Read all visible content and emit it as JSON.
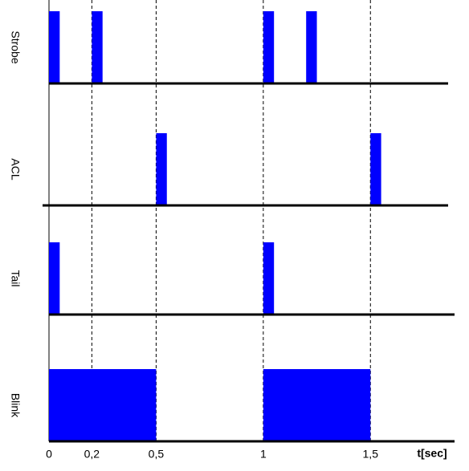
{
  "chart_data": {
    "type": "timing",
    "xlabel": "t[sec]",
    "xlim": [
      0,
      1.9
    ],
    "xticks": [
      0,
      {
        "value": 0.2,
        "label": "0,2"
      },
      {
        "value": 0.5,
        "label": "0,5"
      },
      1,
      {
        "value": 1.5,
        "label": "1,5"
      }
    ],
    "series": [
      {
        "name": "Strobe",
        "color": "#0000ff",
        "values": [
          [
            0,
            0.05
          ],
          [
            0.2,
            0.25
          ],
          [
            1,
            1.05
          ],
          [
            1.2,
            1.25
          ]
        ]
      },
      {
        "name": "ACL",
        "color": "#0000ff",
        "values": [
          [
            0.5,
            0.55
          ],
          [
            1.5,
            1.55
          ]
        ]
      },
      {
        "name": "Tail",
        "color": "#0000ff",
        "values": [
          [
            0,
            0.05
          ],
          [
            1,
            1.05
          ]
        ]
      },
      {
        "name": "Blink",
        "color": "#0000ff",
        "values": [
          [
            0,
            0.5
          ],
          [
            1,
            1.5
          ]
        ]
      }
    ]
  }
}
